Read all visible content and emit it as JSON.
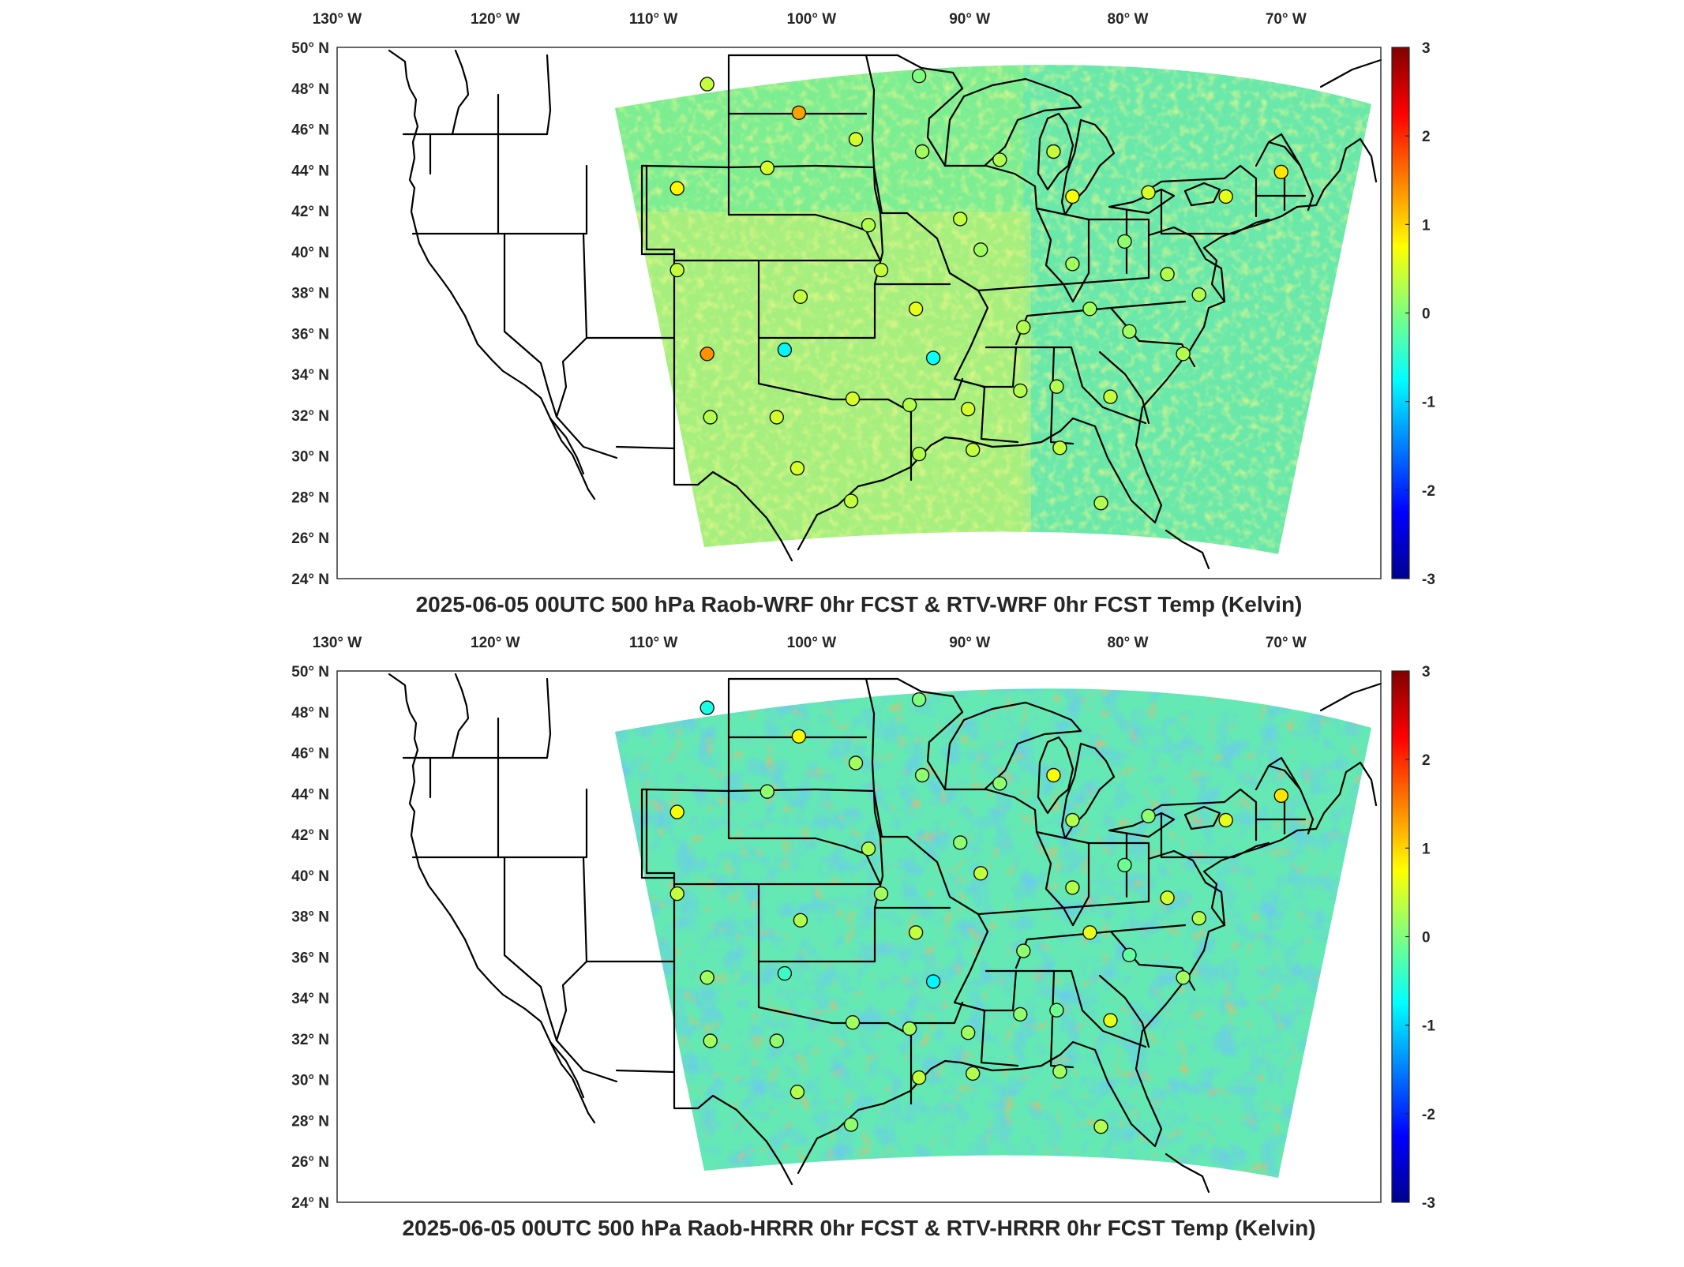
{
  "figure": {
    "panels": [
      {
        "id": "top",
        "title": "2025-06-05 00UTC 500 hPa Raob-WRF 0hr FCST & RTV-WRF 0hr FCST Temp (Kelvin)",
        "field_tone": "warm",
        "stations": [
          {
            "lon": -106.6,
            "lat": 48.2,
            "value": 0.4
          },
          {
            "lon": -100.8,
            "lat": 46.8,
            "value": 1.3
          },
          {
            "lon": -97.2,
            "lat": 45.5,
            "value": 0.5
          },
          {
            "lon": -93.0,
            "lat": 44.9,
            "value": 0.2
          },
          {
            "lon": -93.2,
            "lat": 48.6,
            "value": 0.0
          },
          {
            "lon": -102.8,
            "lat": 44.1,
            "value": 0.5
          },
          {
            "lon": -108.5,
            "lat": 43.1,
            "value": 0.8
          },
          {
            "lon": -88.1,
            "lat": 44.5,
            "value": 0.3
          },
          {
            "lon": -84.7,
            "lat": 44.9,
            "value": 0.4
          },
          {
            "lon": -83.5,
            "lat": 42.7,
            "value": 0.7
          },
          {
            "lon": -78.7,
            "lat": 42.9,
            "value": 0.5
          },
          {
            "lon": -73.8,
            "lat": 42.7,
            "value": 0.6
          },
          {
            "lon": -70.3,
            "lat": 43.9,
            "value": 0.9
          },
          {
            "lon": -96.4,
            "lat": 41.3,
            "value": 0.3
          },
          {
            "lon": -90.6,
            "lat": 41.6,
            "value": 0.4
          },
          {
            "lon": -89.3,
            "lat": 40.1,
            "value": 0.2
          },
          {
            "lon": -80.2,
            "lat": 40.5,
            "value": 0.1
          },
          {
            "lon": -108.5,
            "lat": 39.1,
            "value": 0.4
          },
          {
            "lon": -100.7,
            "lat": 37.8,
            "value": 0.4
          },
          {
            "lon": -95.6,
            "lat": 39.1,
            "value": 0.4
          },
          {
            "lon": -83.5,
            "lat": 39.4,
            "value": 0.2
          },
          {
            "lon": -77.5,
            "lat": 38.9,
            "value": 0.3
          },
          {
            "lon": -93.4,
            "lat": 37.2,
            "value": 0.6
          },
          {
            "lon": -86.6,
            "lat": 36.3,
            "value": 0.3
          },
          {
            "lon": -82.4,
            "lat": 37.2,
            "value": 0.2
          },
          {
            "lon": -79.9,
            "lat": 36.1,
            "value": 0.2
          },
          {
            "lon": -75.5,
            "lat": 37.9,
            "value": 0.3
          },
          {
            "lon": -76.5,
            "lat": 35.0,
            "value": 0.3
          },
          {
            "lon": -106.6,
            "lat": 35.0,
            "value": 1.4
          },
          {
            "lon": -101.7,
            "lat": 35.2,
            "value": -0.8
          },
          {
            "lon": -92.3,
            "lat": 34.8,
            "value": -0.7
          },
          {
            "lon": -97.4,
            "lat": 32.8,
            "value": 0.5
          },
          {
            "lon": -93.8,
            "lat": 32.5,
            "value": 0.3
          },
          {
            "lon": -90.1,
            "lat": 32.3,
            "value": 0.5
          },
          {
            "lon": -86.8,
            "lat": 33.2,
            "value": 0.3
          },
          {
            "lon": -84.5,
            "lat": 33.4,
            "value": 0.3
          },
          {
            "lon": -81.1,
            "lat": 32.9,
            "value": 0.4
          },
          {
            "lon": -106.4,
            "lat": 31.9,
            "value": 0.3
          },
          {
            "lon": -102.2,
            "lat": 31.9,
            "value": 0.5
          },
          {
            "lon": -93.2,
            "lat": 30.1,
            "value": 0.3
          },
          {
            "lon": -89.8,
            "lat": 30.3,
            "value": 0.4
          },
          {
            "lon": -84.3,
            "lat": 30.4,
            "value": 0.4
          },
          {
            "lon": -100.9,
            "lat": 29.4,
            "value": 0.5
          },
          {
            "lon": -97.5,
            "lat": 27.8,
            "value": 0.4
          },
          {
            "lon": -81.7,
            "lat": 27.7,
            "value": 0.3
          }
        ]
      },
      {
        "id": "bottom",
        "title": "2025-06-05 00UTC 500 hPa Raob-HRRR 0hr FCST & RTV-HRRR 0hr FCST Temp (Kelvin)",
        "field_tone": "cool",
        "stations": [
          {
            "lon": -106.6,
            "lat": 48.2,
            "value": -0.6
          },
          {
            "lon": -100.8,
            "lat": 46.8,
            "value": 0.8
          },
          {
            "lon": -97.2,
            "lat": 45.5,
            "value": 0.2
          },
          {
            "lon": -93.0,
            "lat": 44.9,
            "value": 0.1
          },
          {
            "lon": -93.2,
            "lat": 48.6,
            "value": 0.0
          },
          {
            "lon": -102.8,
            "lat": 44.1,
            "value": 0.1
          },
          {
            "lon": -108.5,
            "lat": 43.1,
            "value": 0.7
          },
          {
            "lon": -88.1,
            "lat": 44.5,
            "value": 0.1
          },
          {
            "lon": -84.7,
            "lat": 44.9,
            "value": 0.7
          },
          {
            "lon": -83.5,
            "lat": 42.7,
            "value": 0.3
          },
          {
            "lon": -78.7,
            "lat": 42.9,
            "value": 0.1
          },
          {
            "lon": -73.8,
            "lat": 42.7,
            "value": 0.6
          },
          {
            "lon": -70.3,
            "lat": 43.9,
            "value": 0.9
          },
          {
            "lon": -96.4,
            "lat": 41.3,
            "value": 0.3
          },
          {
            "lon": -90.6,
            "lat": 41.6,
            "value": 0.1
          },
          {
            "lon": -89.3,
            "lat": 40.1,
            "value": 0.4
          },
          {
            "lon": -80.2,
            "lat": 40.5,
            "value": -0.1
          },
          {
            "lon": -108.5,
            "lat": 39.1,
            "value": 0.4
          },
          {
            "lon": -100.7,
            "lat": 37.8,
            "value": 0.3
          },
          {
            "lon": -95.6,
            "lat": 39.1,
            "value": 0.2
          },
          {
            "lon": -83.5,
            "lat": 39.4,
            "value": 0.3
          },
          {
            "lon": -77.5,
            "lat": 38.9,
            "value": 0.5
          },
          {
            "lon": -93.4,
            "lat": 37.2,
            "value": 0.4
          },
          {
            "lon": -86.6,
            "lat": 36.3,
            "value": 0.1
          },
          {
            "lon": -82.4,
            "lat": 37.2,
            "value": 0.6
          },
          {
            "lon": -79.9,
            "lat": 36.1,
            "value": -0.2
          },
          {
            "lon": -75.5,
            "lat": 37.9,
            "value": 0.3
          },
          {
            "lon": -76.5,
            "lat": 35.0,
            "value": 0.2
          },
          {
            "lon": -106.6,
            "lat": 35.0,
            "value": 0.2
          },
          {
            "lon": -101.7,
            "lat": 35.2,
            "value": -0.4
          },
          {
            "lon": -92.3,
            "lat": 34.8,
            "value": -0.8
          },
          {
            "lon": -97.4,
            "lat": 32.8,
            "value": 0.2
          },
          {
            "lon": -93.8,
            "lat": 32.5,
            "value": 0.2
          },
          {
            "lon": -90.1,
            "lat": 32.3,
            "value": 0.2
          },
          {
            "lon": -86.8,
            "lat": 33.2,
            "value": 0.1
          },
          {
            "lon": -84.5,
            "lat": 33.4,
            "value": -0.1
          },
          {
            "lon": -81.1,
            "lat": 32.9,
            "value": 0.6
          },
          {
            "lon": -106.4,
            "lat": 31.9,
            "value": 0.2
          },
          {
            "lon": -102.2,
            "lat": 31.9,
            "value": 0.1
          },
          {
            "lon": -93.2,
            "lat": 30.1,
            "value": 0.4
          },
          {
            "lon": -89.8,
            "lat": 30.3,
            "value": 0.3
          },
          {
            "lon": -84.3,
            "lat": 30.4,
            "value": 0.2
          },
          {
            "lon": -100.9,
            "lat": 29.4,
            "value": 0.3
          },
          {
            "lon": -97.5,
            "lat": 27.8,
            "value": 0.1
          },
          {
            "lon": -81.7,
            "lat": 27.7,
            "value": 0.3
          }
        ]
      }
    ],
    "lon_labels": [
      "130° W",
      "120° W",
      "110° W",
      "100° W",
      "90° W",
      "80° W",
      "70° W"
    ],
    "lon_values": [
      -130,
      -120,
      -110,
      -100,
      -90,
      -80,
      -70
    ],
    "lat_labels": [
      "24° N",
      "26° N",
      "28° N",
      "30° N",
      "32° N",
      "34° N",
      "36° N",
      "38° N",
      "40° N",
      "42° N",
      "44° N",
      "46° N",
      "48° N",
      "50° N"
    ],
    "lat_values": [
      24,
      26,
      28,
      30,
      32,
      34,
      36,
      38,
      40,
      42,
      44,
      46,
      48,
      50
    ],
    "colorbar": {
      "min": -3,
      "max": 3,
      "tick_labels": [
        "3",
        "2",
        "1",
        "0",
        "-1",
        "-2",
        "-3"
      ],
      "tick_values": [
        3,
        2,
        1,
        0,
        -1,
        -2,
        -3
      ],
      "colormap": "jet"
    },
    "lon_range": [
      -130,
      -64
    ],
    "lat_range": [
      24,
      50
    ]
  }
}
